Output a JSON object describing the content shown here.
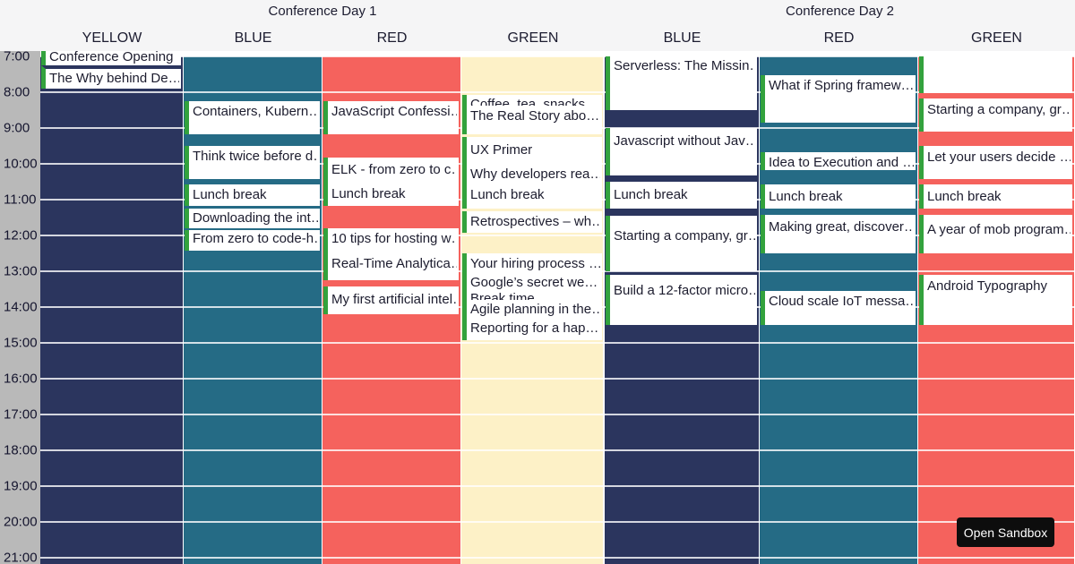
{
  "header": {
    "days": [
      {
        "label": "Conference Day 1"
      },
      {
        "label": "Conference Day 2"
      }
    ]
  },
  "columns": [
    {
      "resource": "YELLOW",
      "day": 0,
      "color": "#2b355e"
    },
    {
      "resource": "BLUE",
      "day": 0,
      "color": "#256b85"
    },
    {
      "resource": "RED",
      "day": 0,
      "color": "#f5625d"
    },
    {
      "resource": "GREEN",
      "day": 0,
      "color": "#fdf1c7"
    },
    {
      "resource": "BLUE",
      "day": 1,
      "color": "#2b355e"
    },
    {
      "resource": "RED",
      "day": 1,
      "color": "#256b85"
    },
    {
      "resource": "GREEN",
      "day": 1,
      "color": "#f5625d"
    }
  ],
  "time_axis": {
    "labels": [
      "7:00",
      "8:00",
      "9:00",
      "10:00",
      "11:00",
      "12:00",
      "13:00",
      "14:00",
      "15:00",
      "16:00",
      "17:00",
      "18:00",
      "19:00",
      "20:00",
      "21:00"
    ]
  },
  "event_style": {
    "border_color": "#33a23d",
    "text_color": "#1c1c2e",
    "bg": "#ffffff",
    "divider_color": "#2b355e"
  },
  "events": [
    {
      "col": 0,
      "title": "Conference Opening",
      "start": 6.75,
      "end": 7.25,
      "pad": 1
    },
    {
      "col": 0,
      "title": "The Why behind De…",
      "start": 7.25,
      "end": 8.0,
      "pad": 1,
      "divider": true
    },
    {
      "col": 1,
      "title": "Containers, Kubern…",
      "start": 8.25,
      "end": 9.17,
      "pad": 2
    },
    {
      "col": 1,
      "title": "Think twice before d…",
      "start": 9.5,
      "end": 10.42,
      "pad": 2
    },
    {
      "col": 1,
      "title": "Lunch break",
      "start": 10.58,
      "end": 11.17,
      "pad": 2
    },
    {
      "col": 1,
      "title": "Downloading the int…",
      "start": 11.25,
      "end": 11.8,
      "pad": 1
    },
    {
      "col": 1,
      "title": "From zero to code-h…",
      "start": 11.85,
      "end": 12.42,
      "pad": 0
    },
    {
      "col": 2,
      "title": "JavaScript Confessi…",
      "start": 8.25,
      "end": 9.17,
      "pad": 2
    },
    {
      "col": 2,
      "title": "ELK - from zero to c…",
      "start": 9.83,
      "end": 10.42,
      "pad": 4
    },
    {
      "col": 2,
      "title": "Lunch break",
      "start": 10.42,
      "end": 11.17,
      "pad": 7
    },
    {
      "col": 2,
      "title": "10 tips for hosting w…",
      "start": 11.8,
      "end": 12.5,
      "pad": 2
    },
    {
      "col": 2,
      "title": "Real-Time Analytica…",
      "start": 12.5,
      "end": 13.25,
      "pad": 2
    },
    {
      "col": 2,
      "title": "My first artificial intel…",
      "start": 13.42,
      "end": 14.2,
      "pad": 5
    },
    {
      "col": 3,
      "title": "Coffee, tea, snacks",
      "start": 8.08,
      "end": 8.58,
      "pad": 1
    },
    {
      "col": 3,
      "title": "The Real Story abo…",
      "start": 8.38,
      "end": 9.17,
      "pad": 2
    },
    {
      "col": 3,
      "title": "UX Primer",
      "start": 9.25,
      "end": 10.0,
      "pad": 5
    },
    {
      "col": 3,
      "title": "Why developers rea…",
      "start": 10.0,
      "end": 10.5,
      "pad": 2
    },
    {
      "col": 3,
      "title": "Lunch break",
      "start": 10.5,
      "end": 11.25,
      "pad": 5
    },
    {
      "col": 3,
      "title": "Retrospectives – wh…",
      "start": 11.33,
      "end": 11.92,
      "pad": 2
    },
    {
      "col": 3,
      "title": "Your hiring process …",
      "start": 12.5,
      "end": 13.08,
      "pad": 2
    },
    {
      "col": 3,
      "title": "Break time",
      "start": 13.5,
      "end": 14.0,
      "pad": 1
    },
    {
      "col": 3,
      "title": "Google’s secret we…",
      "start": 13.08,
      "end": 13.58,
      "pad": 0
    },
    {
      "col": 3,
      "title": "Agile planning in the…",
      "start": 13.8,
      "end": 14.33,
      "pad": 1
    },
    {
      "col": 3,
      "title": "Reporting for a hap…",
      "start": 14.33,
      "end": 14.92,
      "pad": 1
    },
    {
      "col": 4,
      "title": "Serverless: The Missin…",
      "start": 7.0,
      "end": 8.5,
      "pad": 1
    },
    {
      "col": 4,
      "title": "Javascript without Jav…",
      "start": 9.0,
      "end": 10.33,
      "pad": 5
    },
    {
      "col": 4,
      "title": "Lunch break",
      "start": 10.5,
      "end": 11.25,
      "pad": 5
    },
    {
      "col": 4,
      "title": "Starting a company, gr…",
      "start": 11.45,
      "end": 13.0,
      "pad": 13
    },
    {
      "col": 4,
      "title": "Build a 12-factor micro…",
      "start": 13.1,
      "end": 14.5,
      "pad": 8
    },
    {
      "col": 5,
      "title": "What if Spring framew…",
      "start": 7.53,
      "end": 8.85,
      "pad": 2
    },
    {
      "col": 5,
      "title": "Idea to Execution and …",
      "start": 9.67,
      "end": 10.17,
      "pad": 2
    },
    {
      "col": 5,
      "title": "Lunch break",
      "start": 10.58,
      "end": 11.25,
      "pad": 4
    },
    {
      "col": 5,
      "title": "Making great, discover…",
      "start": 11.42,
      "end": 12.5,
      "pad": 4
    },
    {
      "col": 5,
      "title": "Cloud scale IoT messa…",
      "start": 13.55,
      "end": 14.5,
      "pad": 2
    },
    {
      "col": 6,
      "title": "",
      "start": 7.0,
      "end": 8.03,
      "pad": 0
    },
    {
      "col": 6,
      "title": "Starting a company, gr…",
      "start": 8.17,
      "end": 9.1,
      "pad": 3
    },
    {
      "col": 6,
      "title": "Let your users decide …",
      "start": 9.5,
      "end": 10.42,
      "pad": 3
    },
    {
      "col": 6,
      "title": "Lunch break",
      "start": 10.58,
      "end": 11.25,
      "pad": 4
    },
    {
      "col": 6,
      "title": "A year of mob program…",
      "start": 11.42,
      "end": 12.5,
      "pad": 7
    },
    {
      "col": 6,
      "title": "Android Typography",
      "start": 13.1,
      "end": 14.5,
      "pad": 3
    }
  ],
  "sandbox_button": {
    "label": "Open Sandbox",
    "bg": "#0d0d0d",
    "text_color": "#ffffff"
  }
}
